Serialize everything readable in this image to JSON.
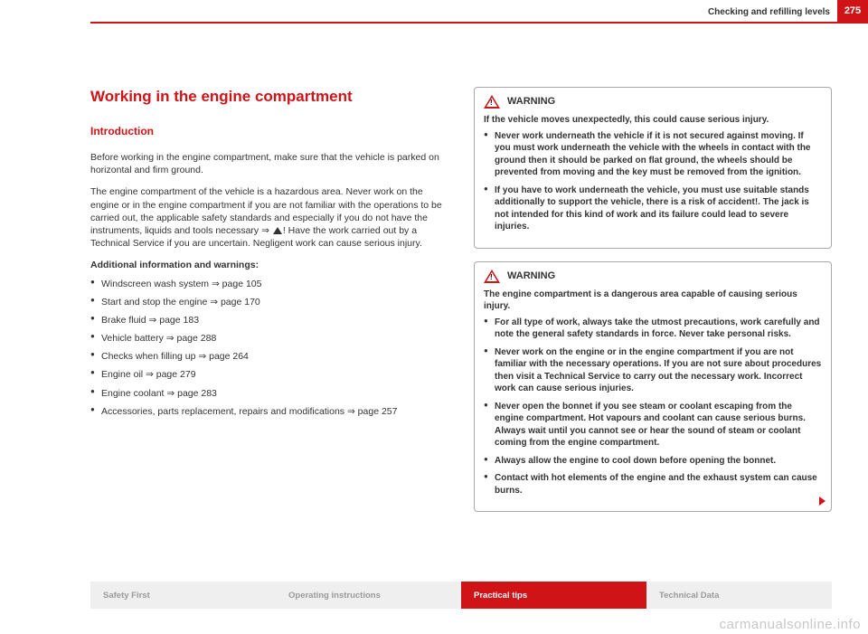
{
  "page": {
    "number": "275",
    "section": "Checking and refilling levels"
  },
  "main": {
    "heading": "Working in the engine compartment",
    "subheading": "Introduction",
    "para1": "Before working in the engine compartment, make sure that the vehicle is parked on horizontal and firm ground.",
    "para2": "The engine compartment of the vehicle is a hazardous area. Never work on the engine or in the engine compartment if you are not familiar with the operations to be carried out, the applicable safety standards and especially if you do not have the instruments, liquids and tools necessary ⇒ ",
    "para2b": "! Have the work carried out by a Technical Service if you are uncertain. Negligent work can cause serious injury.",
    "additional_title": "Additional information and warnings:",
    "refs": [
      "Windscreen wash system ⇒ page 105",
      "Start and stop the engine ⇒ page 170",
      "Brake fluid ⇒ page 183",
      "Vehicle battery ⇒ page 288",
      "Checks when filling up ⇒ page 264",
      "Engine oil ⇒ page 279",
      "Engine coolant ⇒ page 283",
      "Accessories, parts replacement, repairs and modifications ⇒ page 257"
    ]
  },
  "warnings": {
    "title": "WARNING",
    "w1": {
      "intro": "If the vehicle moves unexpectedly, this could cause serious injury.",
      "items": [
        "Never work underneath the vehicle if it is not secured against moving. If you must work underneath the vehicle with the wheels in contact with the ground then it should be parked on flat ground, the wheels should be prevented from moving and the key must be removed from the ignition.",
        "If you have to work underneath the vehicle, you must use suitable stands additionally to support the vehicle, there is a risk of accident!. The jack is not intended for this kind of work and its failure could lead to severe injuries."
      ]
    },
    "w2": {
      "intro": "The engine compartment is a dangerous area capable of causing serious injury.",
      "items": [
        "For all type of work, always take the utmost precautions, work carefully and note the general safety standards in force. Never take personal risks.",
        "Never work on the engine or in the engine compartment if you are not familiar with the necessary operations. If you are not sure about procedures then visit a Technical Service to carry out the necessary work. Incorrect work can cause serious injuries.",
        "Never open the bonnet if you see steam or coolant escaping from the engine compartment. Hot vapours and coolant can cause serious burns. Always wait until you cannot see or hear the sound of steam or coolant coming from the engine compartment.",
        "Always allow the engine to cool down before opening the bonnet.",
        "Contact with hot elements of the engine and the exhaust system can cause burns."
      ]
    }
  },
  "footer": {
    "tabs": [
      "Safety First",
      "Operating instructions",
      "Practical tips",
      "Technical Data"
    ],
    "active_index": 2
  },
  "watermark": "carmanualsonline.info",
  "colors": {
    "brand": "#d01317",
    "muted": "#9a9a9a",
    "box_border": "#aaaaaa",
    "text": "#333333"
  }
}
